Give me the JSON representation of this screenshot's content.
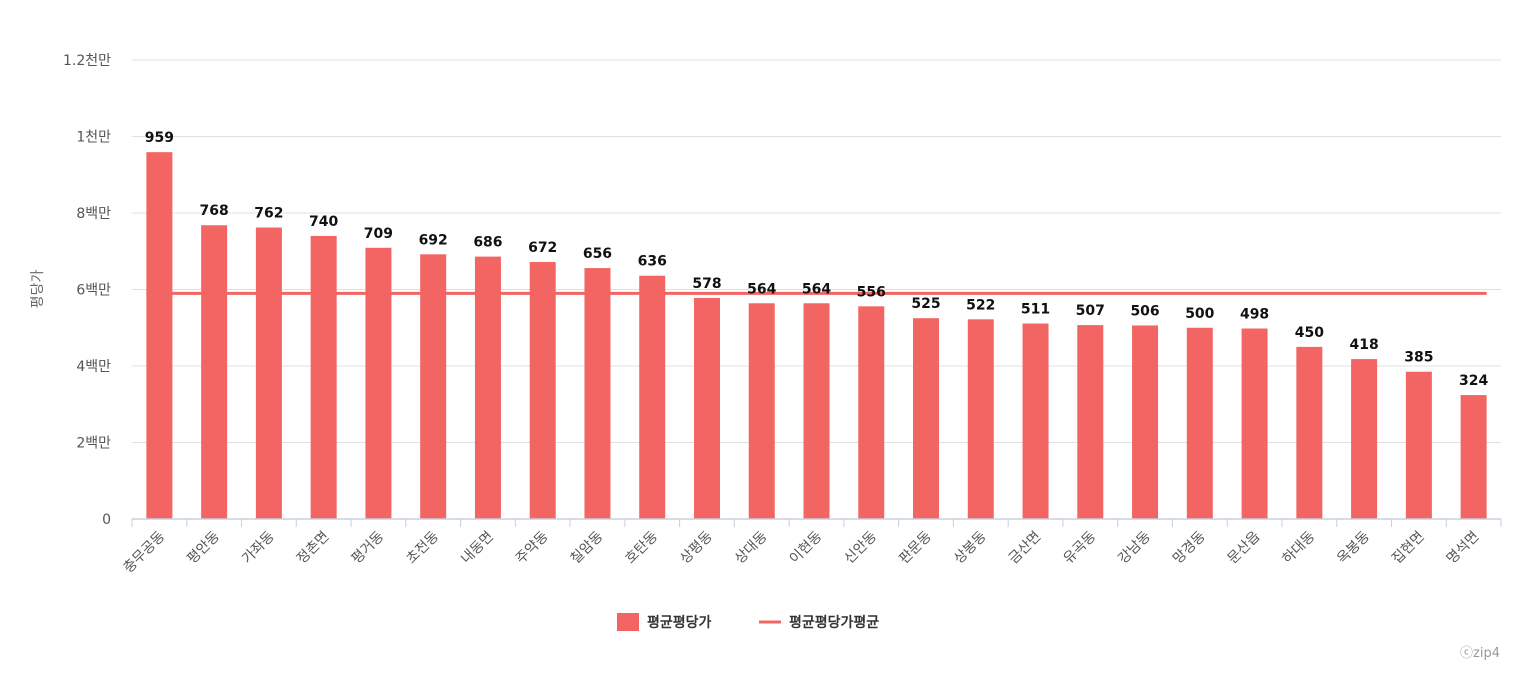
{
  "chart_data": {
    "type": "bar",
    "ylabel": "평당가",
    "yticks": [
      "0",
      "2백만",
      "4백만",
      "6백만",
      "8백만",
      "1천만",
      "1.2천만"
    ],
    "ylim": [
      0,
      12000000
    ],
    "grid": true,
    "legend_position": "bottom-center",
    "categories": [
      "충무공동",
      "평안동",
      "가좌동",
      "정촌면",
      "평거동",
      "초전동",
      "내동면",
      "주약동",
      "칠암동",
      "호탄동",
      "상평동",
      "상대동",
      "이현동",
      "신안동",
      "판문동",
      "상봉동",
      "금산면",
      "유곡동",
      "강남동",
      "망경동",
      "문산읍",
      "하대동",
      "옥봉동",
      "집현면",
      "명석면"
    ],
    "series": [
      {
        "name": "평균평당가",
        "kind": "bar",
        "color": "#f26562",
        "values": [
          9590000,
          7680000,
          7620000,
          7400000,
          7090000,
          6920000,
          6860000,
          6720000,
          6560000,
          6360000,
          5780000,
          5640000,
          5640000,
          5560000,
          5250000,
          5220000,
          5110000,
          5070000,
          5060000,
          5000000,
          4980000,
          4500000,
          4180000,
          3850000,
          3240000
        ],
        "data_labels": [
          "959",
          "768",
          "762",
          "740",
          "709",
          "692",
          "686",
          "672",
          "656",
          "636",
          "578",
          "564",
          "564",
          "556",
          "525",
          "522",
          "511",
          "507",
          "506",
          "500",
          "498",
          "450",
          "418",
          "385",
          "324"
        ]
      },
      {
        "name": "평균평당가평균",
        "kind": "line",
        "color": "#f26562",
        "value": 5900000
      }
    ],
    "credit": "ⓒzip4"
  }
}
